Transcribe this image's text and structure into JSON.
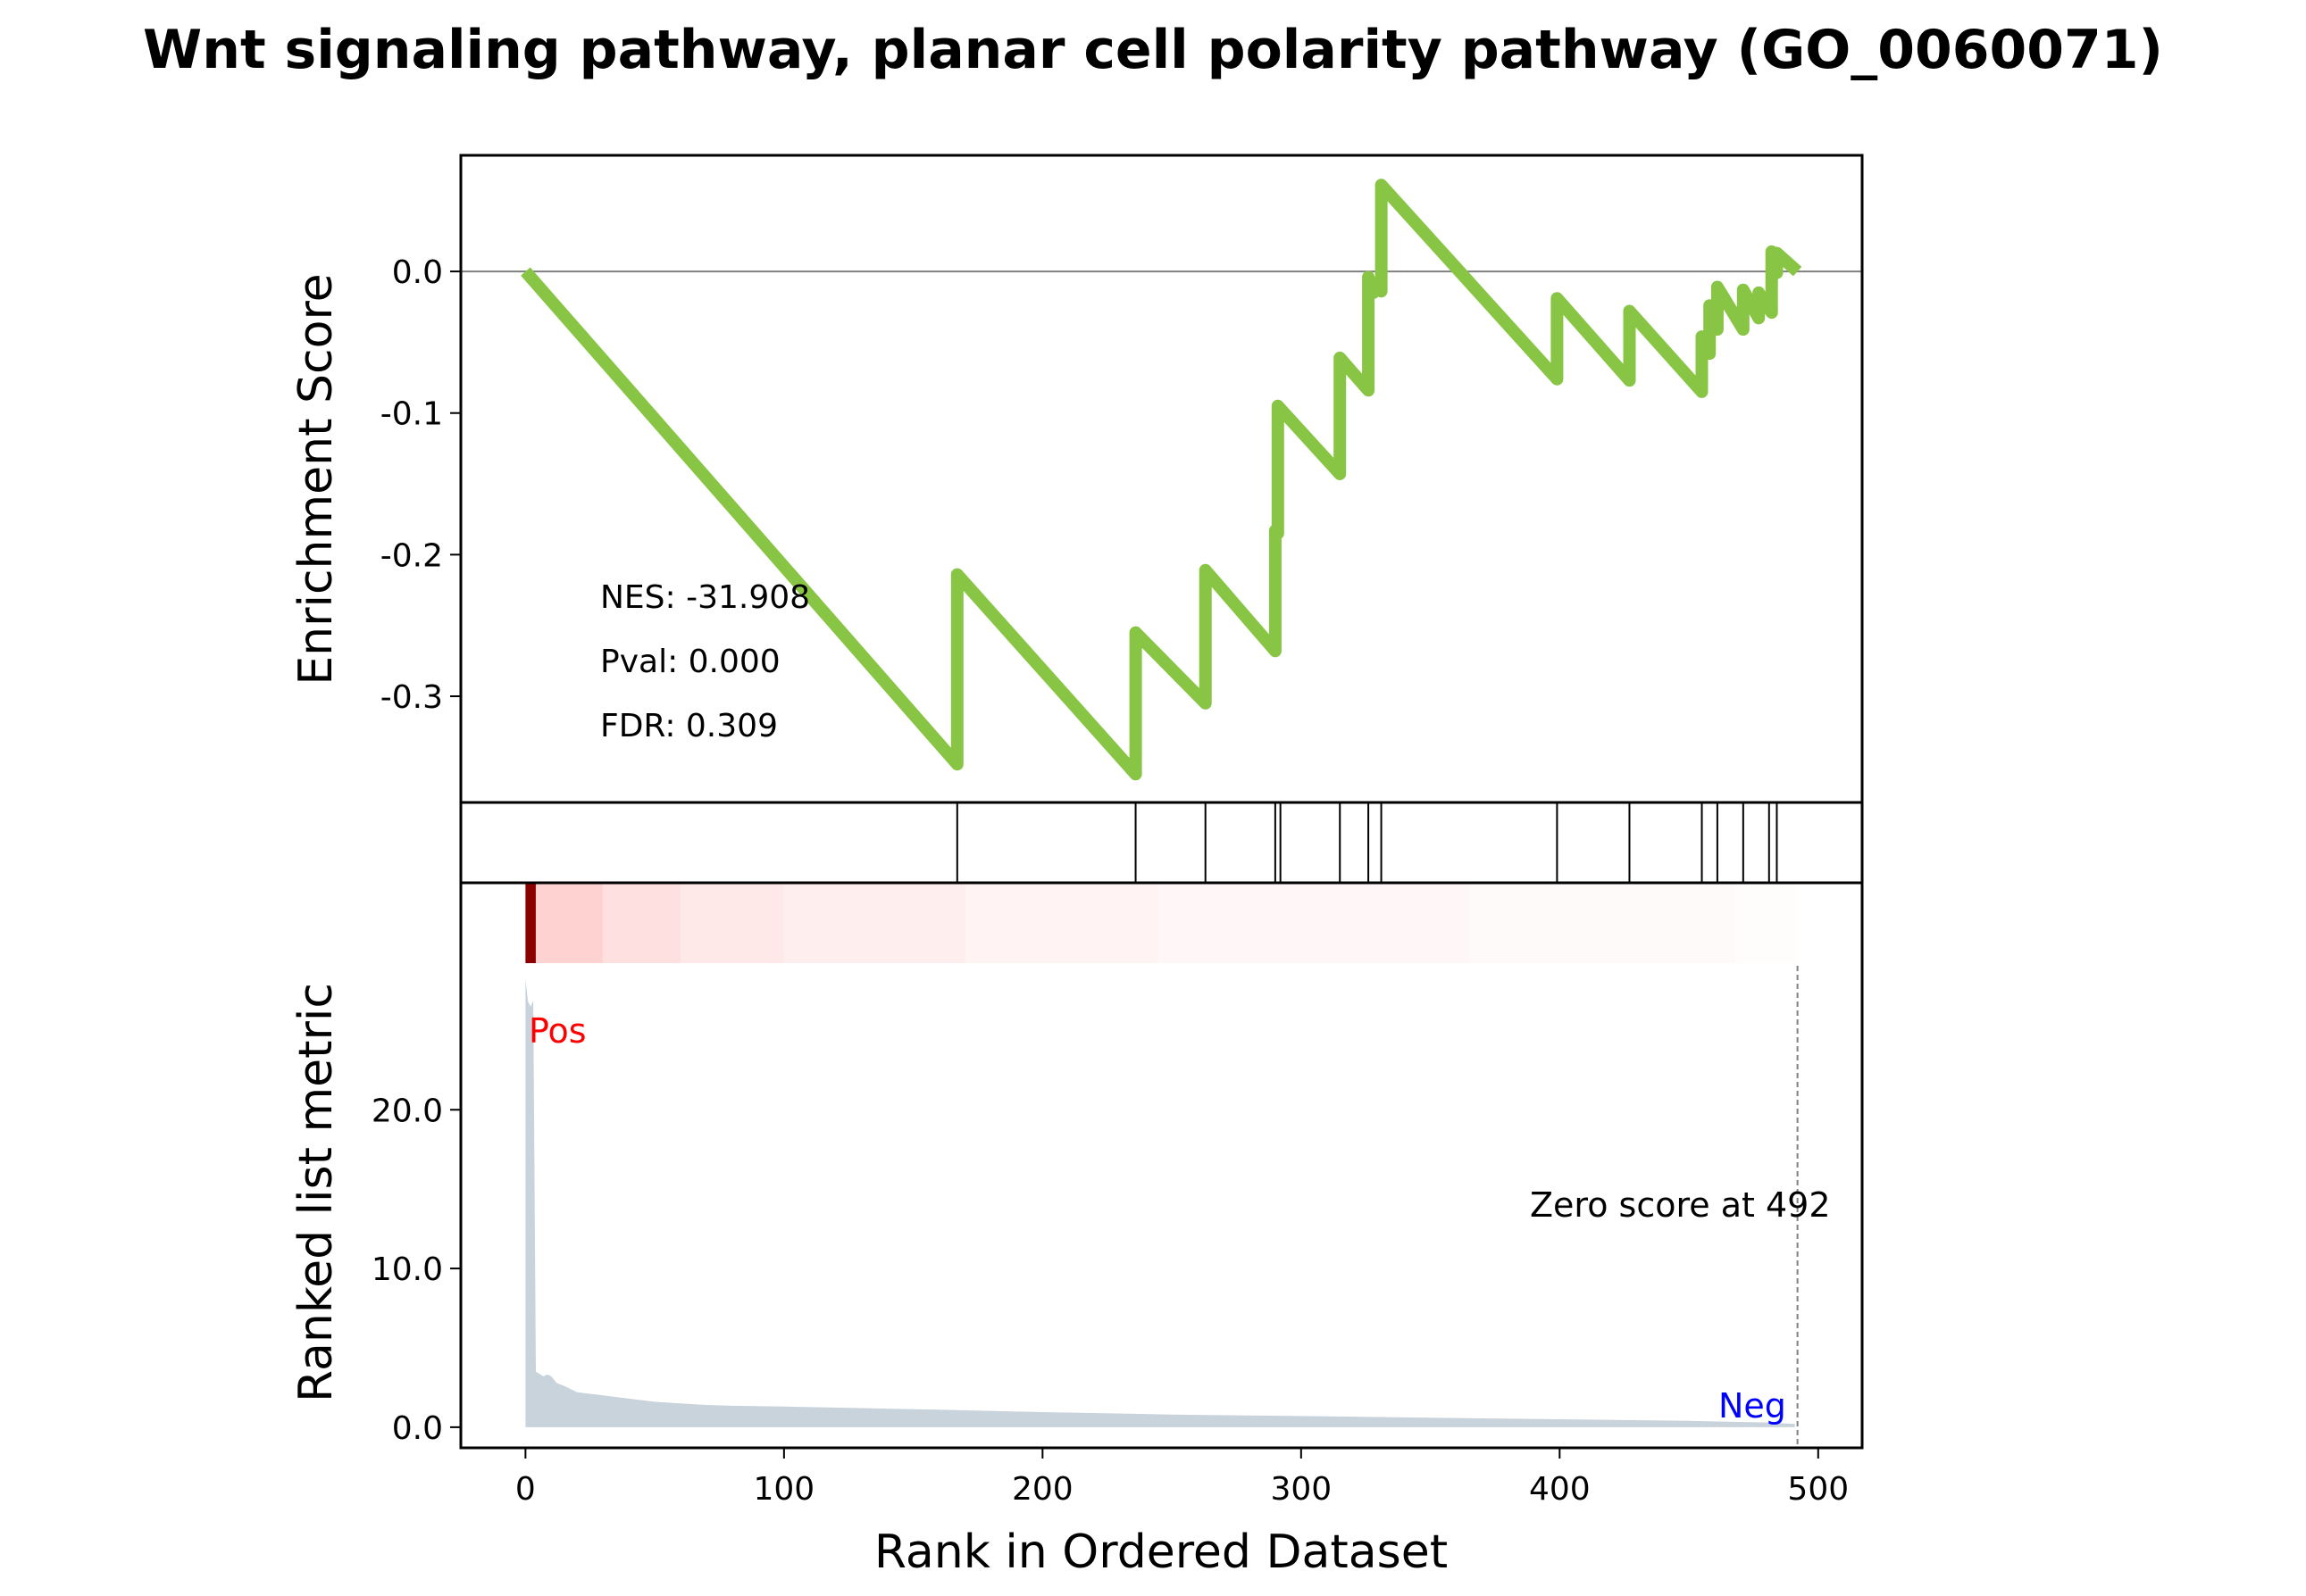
{
  "chart_data": {
    "type": "line",
    "title": "Wnt signaling pathway, planar cell polarity pathway (GO_0060071)",
    "xlabel": "Rank in Ordered Dataset",
    "xlim": [
      -25,
      517
    ],
    "x_ticks": [
      0,
      100,
      200,
      300,
      400,
      500
    ],
    "x_tick_labels": [
      "0",
      "100",
      "200",
      "300",
      "400",
      "500"
    ],
    "enrichment": {
      "ylabel": "Enrichment Score",
      "ylim": [
        -0.375,
        0.082
      ],
      "y_ticks": [
        0.0,
        -0.1,
        -0.2,
        -0.3
      ],
      "y_tick_labels": [
        "0.0",
        "-0.1",
        "-0.2",
        "-0.3"
      ],
      "line_color": "#88c544",
      "zero_line": true,
      "series": [
        {
          "x": [
            0,
            167,
            167,
            236,
            236,
            263,
            263,
            290,
            290,
            291,
            291,
            315,
            315,
            326,
            326,
            328,
            328,
            331,
            331,
            399,
            399,
            427,
            427,
            455,
            455,
            458,
            458,
            461,
            461,
            471,
            471,
            477,
            477,
            482,
            482,
            484,
            484,
            492
          ],
          "y": [
            0.0,
            -0.348,
            -0.214,
            -0.355,
            -0.255,
            -0.305,
            -0.211,
            -0.268,
            -0.183,
            -0.185,
            -0.095,
            -0.143,
            -0.061,
            -0.084,
            -0.004,
            -0.015,
            -0.01,
            -0.014,
            0.061,
            -0.076,
            -0.019,
            -0.077,
            -0.028,
            -0.085,
            -0.046,
            -0.058,
            -0.024,
            -0.041,
            -0.011,
            -0.041,
            -0.013,
            -0.033,
            -0.015,
            -0.029,
            0.014,
            -0.001,
            0.013,
            0.0
          ]
        }
      ],
      "annotations": [
        "NES: -31.908",
        "Pval: 0.000",
        "FDR: 0.309"
      ]
    },
    "hits": {
      "x": [
        167,
        236,
        263,
        290,
        292,
        315,
        326,
        331,
        399,
        427,
        455,
        461,
        471,
        481,
        484
      ]
    },
    "ranked_metric": {
      "ylabel": "Ranked list metric",
      "ylim": [
        -1.3,
        34.3
      ],
      "y_ticks": [
        0.0,
        10.0,
        20.0
      ],
      "y_tick_labels": [
        "0.0",
        "10.0",
        "20.0"
      ],
      "fill_color": "#c9d3dc",
      "x": [
        0,
        1,
        2,
        3,
        4,
        5,
        6,
        7,
        8,
        9,
        10,
        12,
        15,
        20,
        30,
        40,
        50,
        60,
        70,
        80,
        100,
        130,
        160,
        200,
        250,
        300,
        350,
        400,
        450,
        480,
        491
      ],
      "y": [
        28.2,
        26.8,
        26.5,
        26.9,
        3.5,
        3.4,
        3.3,
        3.2,
        3.3,
        3.3,
        3.2,
        2.8,
        2.6,
        2.2,
        2.0,
        1.8,
        1.6,
        1.5,
        1.4,
        1.35,
        1.3,
        1.2,
        1.1,
        0.95,
        0.8,
        0.7,
        0.6,
        0.5,
        0.4,
        0.3,
        0.2
      ],
      "labels": {
        "pos": "Pos",
        "neg": "Neg",
        "zero": "Zero score at 492"
      },
      "pos_color": "#ff0000",
      "neg_color": "#0000ff",
      "zero_score_x": 492
    },
    "heatmap_colors": [
      "#8b0000",
      "#ffd2d2",
      "#ffe0e0",
      "#ffe8e8",
      "#ffeeee",
      "#fff3f3",
      "#fff7f7",
      "#fffafa",
      "#fffcfc"
    ]
  }
}
